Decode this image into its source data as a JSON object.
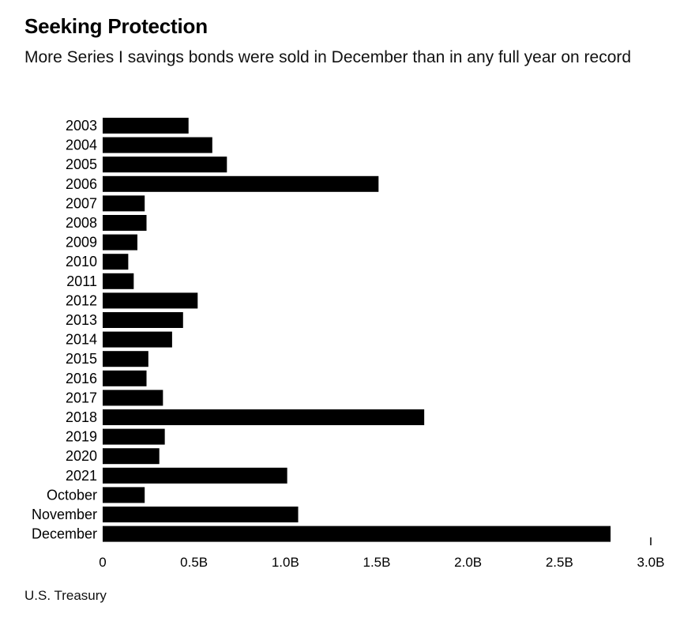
{
  "header": {
    "title": "Seeking Protection",
    "subtitle": "More Series I savings bonds were sold in December than in any full year on record"
  },
  "footer": {
    "source": "U.S. Treasury"
  },
  "chart_data": {
    "type": "bar",
    "orientation": "horizontal",
    "categories": [
      "2003",
      "2004",
      "2005",
      "2006",
      "2007",
      "2008",
      "2009",
      "2010",
      "2011",
      "2012",
      "2013",
      "2014",
      "2015",
      "2016",
      "2017",
      "2018",
      "2019",
      "2020",
      "2021",
      "October",
      "November",
      "December"
    ],
    "values": [
      0.47,
      0.6,
      0.68,
      1.51,
      0.23,
      0.24,
      0.19,
      0.14,
      0.17,
      0.52,
      0.44,
      0.38,
      0.25,
      0.24,
      0.33,
      1.76,
      0.34,
      0.31,
      1.01,
      0.23,
      1.07,
      2.78
    ],
    "xlim": [
      0,
      3.0
    ],
    "x_ticks": [
      "0",
      "0.5B",
      "1.0B",
      "1.5B",
      "2.0B",
      "2.5B",
      "3.0B"
    ],
    "x_tick_values": [
      0,
      0.5,
      1.0,
      1.5,
      2.0,
      2.5,
      3.0
    ],
    "unit": "B",
    "bar_color": "#000000",
    "grid": false
  }
}
